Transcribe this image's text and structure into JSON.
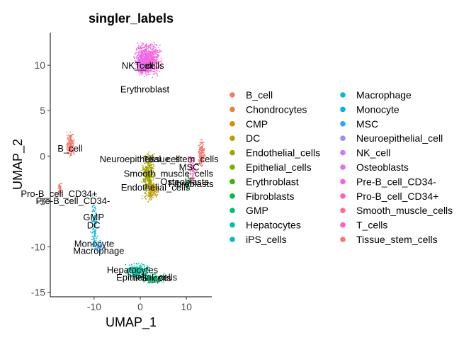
{
  "chart_data": {
    "type": "scatter",
    "title": "singler_labels",
    "xlabel": "UMAP_1",
    "ylabel": "UMAP_2",
    "xlim": [
      -19.5,
      15.5
    ],
    "ylim": [
      -15.5,
      13.6
    ],
    "x_ticks": [
      -10,
      0,
      10
    ],
    "y_ticks": [
      -15,
      -10,
      -5,
      0,
      5,
      10
    ],
    "grid": false,
    "legend_position": "right",
    "categories": [
      {
        "name": "B_cell",
        "color": "#F8766D"
      },
      {
        "name": "Chondrocytes",
        "color": "#EA8331"
      },
      {
        "name": "CMP",
        "color": "#D89000"
      },
      {
        "name": "DC",
        "color": "#C09B00"
      },
      {
        "name": "Endothelial_cells",
        "color": "#A3A500"
      },
      {
        "name": "Epithelial_cells",
        "color": "#7CAE00"
      },
      {
        "name": "Erythroblast",
        "color": "#39B600"
      },
      {
        "name": "Fibroblasts",
        "color": "#00BB4E"
      },
      {
        "name": "GMP",
        "color": "#00BF7D"
      },
      {
        "name": "Hepatocytes",
        "color": "#00C1A3"
      },
      {
        "name": "iPS_cells",
        "color": "#00BFC4"
      },
      {
        "name": "Macrophage",
        "color": "#00BAE0"
      },
      {
        "name": "Monocyte",
        "color": "#00B0F6"
      },
      {
        "name": "MSC",
        "color": "#35A2FF"
      },
      {
        "name": "Neuroepithelial_cell",
        "color": "#9590FF"
      },
      {
        "name": "NK_cell",
        "color": "#C77CFF"
      },
      {
        "name": "Osteoblasts",
        "color": "#E76BF3"
      },
      {
        "name": "Pre-B_cell_CD34-",
        "color": "#FA62DB"
      },
      {
        "name": "Pro-B_cell_CD34+",
        "color": "#FF62BC"
      },
      {
        "name": "Smooth_muscle_cells",
        "color": "#FF6C91"
      },
      {
        "name": "T_cells",
        "color": "#FF61C3"
      },
      {
        "name": "Tissue_stem_cells",
        "color": "#F8766D"
      }
    ],
    "clusters": [
      {
        "name": "T_cells",
        "color": "#FA62DB",
        "cx": 1.6,
        "cy": 10.6,
        "rx": 2.4,
        "ry": 1.5,
        "n": 700
      },
      {
        "name": "NK_cell",
        "color": "#E76BF3",
        "cx": 0.5,
        "cy": 10.3,
        "rx": 1.2,
        "ry": 1.0,
        "n": 160
      },
      {
        "name": "B_cell",
        "color": "#F8766D",
        "cx": -15.1,
        "cy": 1.3,
        "rx": 0.7,
        "ry": 1.1,
        "n": 180
      },
      {
        "name": "Endothelial_cells",
        "color": "#A3A500",
        "cx": 1.8,
        "cy": -2.3,
        "rx": 1.2,
        "ry": 2.2,
        "n": 380
      },
      {
        "name": "Endothelial_cells",
        "color": "#C09B00",
        "cx": 2.7,
        "cy": -3.7,
        "rx": 1.0,
        "ry": 0.7,
        "n": 120
      },
      {
        "name": "Tissue_stem_cells",
        "color": "#F8766D",
        "cx": 13.3,
        "cy": 0.3,
        "rx": 0.6,
        "ry": 1.3,
        "n": 130
      },
      {
        "name": "Smooth_muscle_cells",
        "color": "#FF62BC",
        "cx": 11.2,
        "cy": -1.5,
        "rx": 0.7,
        "ry": 1.6,
        "n": 90
      },
      {
        "name": "Fibroblasts",
        "color": "#00BB4E",
        "cx": 10.3,
        "cy": -2.8,
        "rx": 0.4,
        "ry": 0.8,
        "n": 30
      },
      {
        "name": "Pro-B_cell_CD34+",
        "color": "#F8766D",
        "cx": -17.4,
        "cy": -3.6,
        "rx": 0.3,
        "ry": 0.6,
        "n": 40
      },
      {
        "name": "Macrophage",
        "color": "#00BAE0",
        "cx": -10.0,
        "cy": -7.5,
        "rx": 0.6,
        "ry": 2.4,
        "n": 110
      },
      {
        "name": "Monocyte",
        "color": "#35A2FF",
        "cx": -8.9,
        "cy": -9.9,
        "rx": 0.6,
        "ry": 0.7,
        "n": 40
      },
      {
        "name": "Hepatocytes",
        "color": "#00C1A3",
        "cx": -0.6,
        "cy": -12.7,
        "rx": 2.0,
        "ry": 0.7,
        "n": 260
      },
      {
        "name": "Epithelial_cells",
        "color": "#00BF7D",
        "cx": 2.7,
        "cy": -13.5,
        "rx": 2.3,
        "ry": 0.4,
        "n": 180
      }
    ],
    "annotations": [
      {
        "text": "NK_cell",
        "x": -0.6,
        "y": 10.0
      },
      {
        "text": "T_cells",
        "x": 2.0,
        "y": 10.0
      },
      {
        "text": "Erythroblast",
        "x": 1.0,
        "y": 7.4
      },
      {
        "text": "B_cell",
        "x": -15.2,
        "y": 0.9
      },
      {
        "text": "Neuroepithelial_cell",
        "x": -0.1,
        "y": -0.3
      },
      {
        "text": "Tissue_stem_cells",
        "x": 8.8,
        "y": -0.3
      },
      {
        "text": "MSC",
        "x": 10.6,
        "y": -1.2
      },
      {
        "text": "Smooth_muscle_cells",
        "x": 6.1,
        "y": -1.9
      },
      {
        "text": "Osteoblasts",
        "x": 9.6,
        "y": -2.8
      },
      {
        "text": "Fibroblasts",
        "x": 11.0,
        "y": -3.0
      },
      {
        "text": "Endothelial_cells",
        "x": 3.3,
        "y": -3.4
      },
      {
        "text": "Pro-B_cell_CD34+",
        "x": -17.6,
        "y": -4.1
      },
      {
        "text": "Pre-B_cell_CD34-",
        "x": -14.6,
        "y": -4.9
      },
      {
        "text": "GMP",
        "x": -10.1,
        "y": -6.7
      },
      {
        "text": "DC",
        "x": -10.1,
        "y": -7.6
      },
      {
        "text": "Monocyte",
        "x": -10.0,
        "y": -9.6
      },
      {
        "text": "Macrophage",
        "x": -9.0,
        "y": -10.4
      },
      {
        "text": "Hepatocytes",
        "x": -1.7,
        "y": -12.5
      },
      {
        "text": "Epithelial_cells",
        "x": 1.4,
        "y": -13.3
      },
      {
        "text": "iPS_cells",
        "x": 2.6,
        "y": -13.4
      }
    ]
  }
}
